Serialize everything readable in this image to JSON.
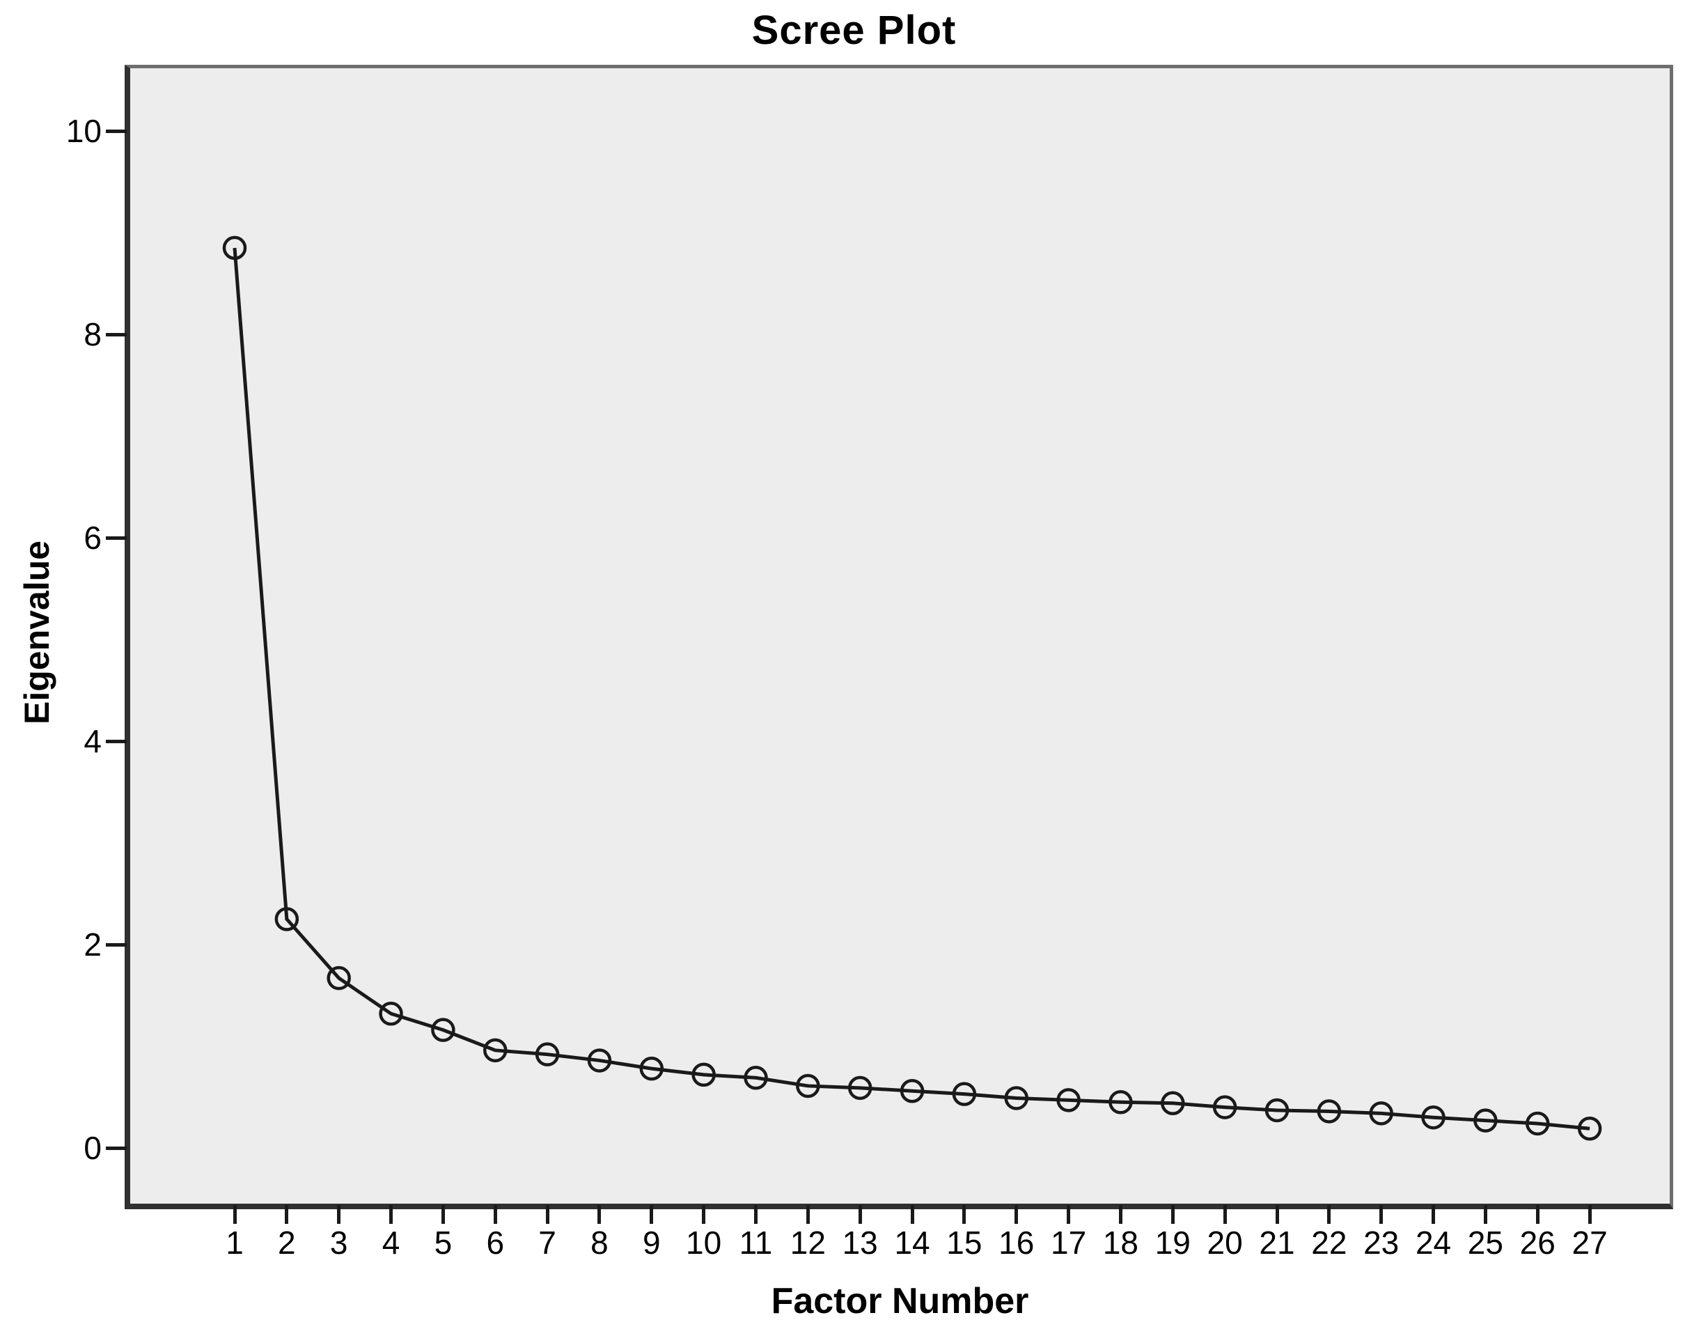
{
  "chart_data": {
    "type": "line",
    "title": "Scree Plot",
    "xlabel": "Factor Number",
    "ylabel": "Eigenvalue",
    "categories": [
      "1",
      "2",
      "3",
      "4",
      "5",
      "6",
      "7",
      "8",
      "9",
      "10",
      "11",
      "12",
      "13",
      "14",
      "15",
      "16",
      "17",
      "18",
      "19",
      "20",
      "21",
      "22",
      "23",
      "24",
      "25",
      "26",
      "27"
    ],
    "series": [
      {
        "name": "Eigenvalue",
        "values": [
          8.85,
          2.25,
          1.67,
          1.32,
          1.16,
          0.96,
          0.92,
          0.86,
          0.78,
          0.72,
          0.69,
          0.61,
          0.59,
          0.56,
          0.53,
          0.49,
          0.47,
          0.45,
          0.44,
          0.4,
          0.37,
          0.36,
          0.34,
          0.3,
          0.27,
          0.24,
          0.19
        ]
      }
    ],
    "y_ticks": [
      0,
      2,
      4,
      6,
      8,
      10
    ],
    "ylim": [
      -0.55,
      10.62
    ],
    "grid": false,
    "legend_position": "none",
    "marker": "open-circle",
    "colors": {
      "line": "#1a1a1a",
      "marker_stroke": "#1a1a1a",
      "plot_background": "#ededed",
      "frame_light": "#6e6e6e",
      "frame_dark": "#303030",
      "text": "#000000",
      "canvas_background": "#ffffff"
    }
  }
}
